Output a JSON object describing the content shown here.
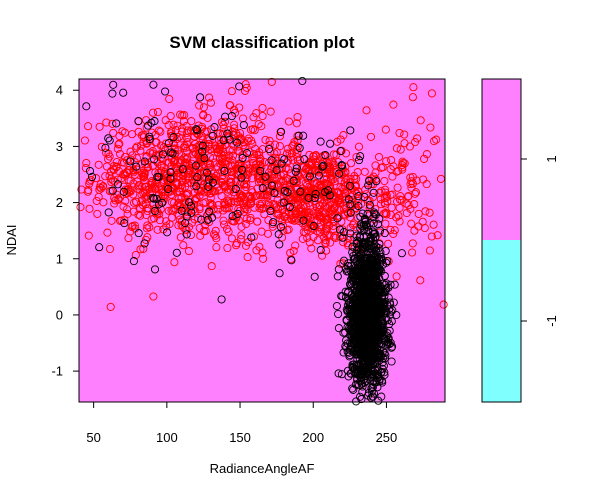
{
  "chart_data": {
    "type": "scatter",
    "title": "SVM classification plot",
    "xlabel": "RadianceAngleAF",
    "ylabel": "NDAI",
    "xlim": [
      40,
      290
    ],
    "ylim": [
      -1.55,
      4.2
    ],
    "x_ticks": [
      "50",
      "100",
      "150",
      "200",
      "250"
    ],
    "y_ticks": [
      "-1",
      "0",
      "1",
      "2",
      "3",
      "4"
    ],
    "decision_region_color": "#ff80ff",
    "classes": [
      {
        "label": "1",
        "color": "#ff80ff",
        "range": [
          0,
          1
        ]
      },
      {
        "label": "-1",
        "color": "#80ffff",
        "range": [
          -1,
          0
        ]
      }
    ],
    "point_colors": {
      "red": "#ff0000",
      "black": "#000000"
    },
    "point_symbol": "o",
    "support_vector_symbol": "x",
    "series": [
      {
        "color": "red",
        "clusters": [
          {
            "cx": 105,
            "cy": 2.45,
            "sx": 28,
            "sy": 0.55,
            "n": 650
          },
          {
            "cx": 200,
            "cy": 2.1,
            "sx": 22,
            "sy": 0.45,
            "n": 550
          },
          {
            "cx": 150,
            "cy": 2.6,
            "sx": 20,
            "sy": 0.6,
            "n": 250
          },
          {
            "cx": 260,
            "cy": 2.2,
            "sx": 14,
            "sy": 0.7,
            "n": 120
          }
        ]
      },
      {
        "color": "black",
        "clusters": [
          {
            "cx": 237,
            "cy": -0.1,
            "sx": 6.5,
            "sy": 0.55,
            "n": 1400
          },
          {
            "cx": 236,
            "cy": 0.9,
            "sx": 6,
            "sy": 0.5,
            "n": 200
          },
          {
            "cx": 110,
            "cy": 2.5,
            "sx": 35,
            "sy": 0.8,
            "n": 110
          },
          {
            "cx": 200,
            "cy": 2.3,
            "sx": 25,
            "sy": 0.7,
            "n": 60
          }
        ]
      }
    ]
  }
}
